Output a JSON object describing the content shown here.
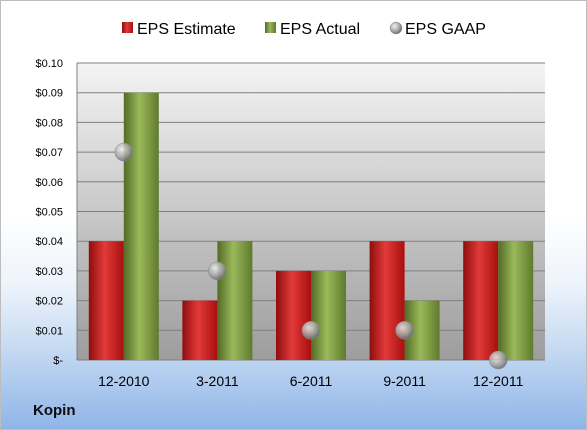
{
  "company": "Kopin",
  "colors": {
    "estimate": "#c00000",
    "actual": "#77933c",
    "gaap": "#b3b3b3"
  },
  "chart_data": {
    "type": "bar",
    "title": "",
    "xlabel": "",
    "ylabel": "",
    "categories": [
      "12-2010",
      "3-2011",
      "6-2011",
      "9-2011",
      "12-2011"
    ],
    "series": [
      {
        "name": "EPS Estimate",
        "kind": "bar",
        "values": [
          0.04,
          0.02,
          0.03,
          0.04,
          0.04
        ]
      },
      {
        "name": "EPS Actual",
        "kind": "bar",
        "values": [
          0.09,
          0.04,
          0.03,
          0.02,
          0.04
        ]
      },
      {
        "name": "EPS GAAP",
        "kind": "marker",
        "values": [
          0.07,
          0.03,
          0.01,
          0.01,
          0.0
        ]
      }
    ],
    "ylim": [
      0,
      0.1
    ],
    "yticks": [
      0,
      0.01,
      0.02,
      0.03,
      0.04,
      0.05,
      0.06,
      0.07,
      0.08,
      0.09,
      0.1
    ],
    "ytick_labels": [
      "$-",
      "$0.01",
      "$0.02",
      "$0.03",
      "$0.04",
      "$0.05",
      "$0.06",
      "$0.07",
      "$0.08",
      "$0.09",
      "$0.10"
    ],
    "grid": true,
    "legend_position": "top"
  }
}
